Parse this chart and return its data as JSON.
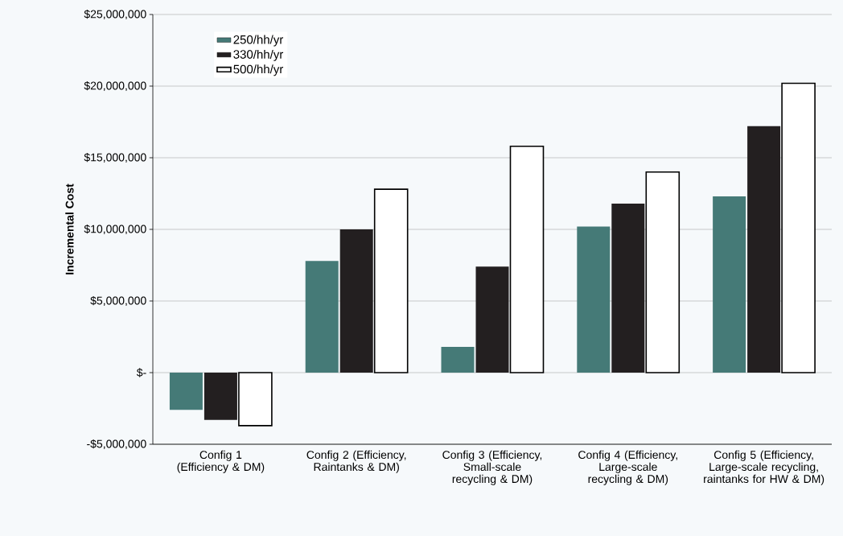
{
  "chart_data": {
    "type": "bar",
    "ylabel": "Incremental Cost",
    "categories": [
      "Config 1 (Efficiency & DM)",
      "Config 2 (Efficiency, Raintanks & DM)",
      "Config 3 (Efficiency, Small-scale recycling & DM)",
      "Config 4 (Efficiency, Large-scale recycling & DM)",
      "Config 5 (Efficiency, Large-scale recycling, raintanks for HW & DM)"
    ],
    "series": [
      {
        "name": "250/hh/yr",
        "color": "#457a77",
        "values": [
          -2600000.0,
          7800000.0,
          1800000.0,
          10200000.0,
          12300000.0
        ]
      },
      {
        "name": "330/hh/yr",
        "color": "#231f20",
        "values": [
          -3300000.0,
          10000000.0,
          7400000.0,
          11800000.0,
          17200000.0
        ]
      },
      {
        "name": "500/hh/yr",
        "color": "#ffffff",
        "values": [
          -3700000.0,
          12800000.0,
          15800000.0,
          14000000.0,
          20200000.0
        ]
      }
    ],
    "ylim": [
      -5000000,
      25000000
    ],
    "yticks": [
      {
        "value": -5000000,
        "label": "-$5,000,000"
      },
      {
        "value": 0,
        "label": "$-"
      },
      {
        "value": 5000000,
        "label": "$5,000,000"
      },
      {
        "value": 10000000,
        "label": "$10,000,000"
      },
      {
        "value": 15000000,
        "label": "$15,000,000"
      },
      {
        "value": 20000000,
        "label": "$20,000,000"
      },
      {
        "value": 25000000,
        "label": "$25,000,000"
      }
    ],
    "grid": "y",
    "legend": "top left"
  }
}
